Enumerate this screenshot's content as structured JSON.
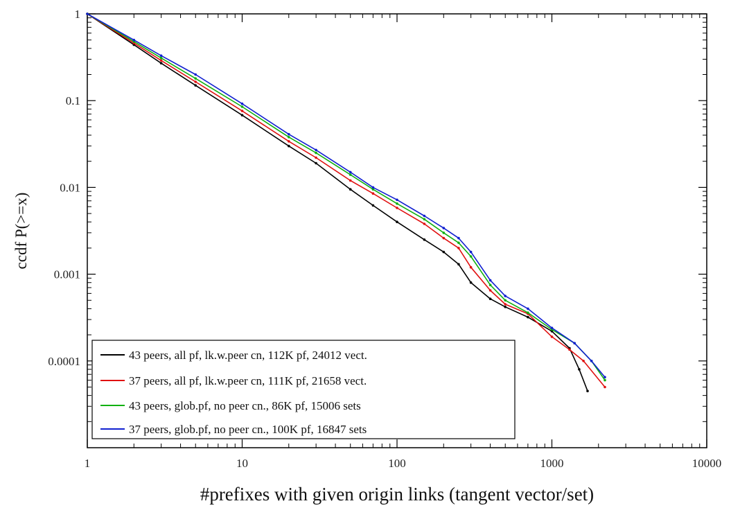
{
  "chart_data": {
    "type": "line",
    "title": "",
    "xlabel": "#prefixes with given origin links (tangent vector/set)",
    "ylabel": "ccdf P(>=x)",
    "xscale": "log",
    "yscale": "log",
    "xlim": [
      1,
      10000
    ],
    "ylim": [
      1e-05,
      1
    ],
    "x_ticks": [
      1,
      10,
      100,
      1000,
      10000
    ],
    "x_tick_labels": [
      "1",
      "10",
      "100",
      "1000",
      "10000"
    ],
    "y_ticks": [
      1,
      0.1,
      0.01,
      0.001,
      0.0001
    ],
    "y_tick_labels": [
      "1",
      "0.1",
      "0.01",
      "0.001",
      "0.0001"
    ],
    "grid": false,
    "legend_position": "bottom-left",
    "series": [
      {
        "name": "43 peers, all pf, lk.w.peer cn, 112K pf, 24012 vect.",
        "color": "#000000",
        "points": [
          [
            1,
            1
          ],
          [
            2,
            0.44
          ],
          [
            3,
            0.27
          ],
          [
            5,
            0.15
          ],
          [
            10,
            0.068
          ],
          [
            20,
            0.03
          ],
          [
            30,
            0.019
          ],
          [
            50,
            0.0095
          ],
          [
            70,
            0.0062
          ],
          [
            100,
            0.004
          ],
          [
            150,
            0.0025
          ],
          [
            200,
            0.0018
          ],
          [
            250,
            0.0013
          ],
          [
            300,
            0.0008
          ],
          [
            400,
            0.00052
          ],
          [
            500,
            0.00042
          ],
          [
            700,
            0.00032
          ],
          [
            1000,
            0.00022
          ],
          [
            1300,
            0.00014
          ],
          [
            1500,
            8e-05
          ],
          [
            1700,
            4.5e-05
          ]
        ]
      },
      {
        "name": "37 peers, all pf, lk.w.peer cn, 111K pf, 21658 vect.",
        "color": "#e01010",
        "points": [
          [
            1,
            1
          ],
          [
            2,
            0.46
          ],
          [
            3,
            0.29
          ],
          [
            5,
            0.165
          ],
          [
            10,
            0.076
          ],
          [
            20,
            0.034
          ],
          [
            30,
            0.022
          ],
          [
            50,
            0.012
          ],
          [
            70,
            0.0085
          ],
          [
            100,
            0.0058
          ],
          [
            150,
            0.0038
          ],
          [
            200,
            0.0026
          ],
          [
            250,
            0.002
          ],
          [
            300,
            0.0012
          ],
          [
            400,
            0.00065
          ],
          [
            500,
            0.00045
          ],
          [
            700,
            0.00035
          ],
          [
            1000,
            0.00019
          ],
          [
            1300,
            0.000135
          ],
          [
            1600,
            0.0001
          ],
          [
            2200,
            5e-05
          ]
        ]
      },
      {
        "name": "43 peers, glob.pf, no peer cn., 86K pf, 15006 sets",
        "color": "#10b010",
        "points": [
          [
            1,
            1
          ],
          [
            2,
            0.48
          ],
          [
            3,
            0.31
          ],
          [
            5,
            0.18
          ],
          [
            10,
            0.085
          ],
          [
            20,
            0.038
          ],
          [
            30,
            0.025
          ],
          [
            50,
            0.014
          ],
          [
            70,
            0.0095
          ],
          [
            100,
            0.0065
          ],
          [
            150,
            0.0043
          ],
          [
            200,
            0.003
          ],
          [
            250,
            0.0023
          ],
          [
            300,
            0.0016
          ],
          [
            400,
            0.00075
          ],
          [
            500,
            0.0005
          ],
          [
            700,
            0.00036
          ],
          [
            1000,
            0.00023
          ],
          [
            1400,
            0.00016
          ],
          [
            1800,
            0.0001
          ],
          [
            2200,
            6e-05
          ]
        ]
      },
      {
        "name": "37 peers, glob.pf, no peer cn., 100K pf, 16847 sets",
        "color": "#1020d0",
        "points": [
          [
            1,
            1
          ],
          [
            2,
            0.5
          ],
          [
            3,
            0.33
          ],
          [
            5,
            0.2
          ],
          [
            10,
            0.092
          ],
          [
            20,
            0.041
          ],
          [
            30,
            0.027
          ],
          [
            50,
            0.015
          ],
          [
            70,
            0.01
          ],
          [
            100,
            0.0072
          ],
          [
            150,
            0.0047
          ],
          [
            200,
            0.0034
          ],
          [
            250,
            0.0026
          ],
          [
            300,
            0.0018
          ],
          [
            400,
            0.00085
          ],
          [
            500,
            0.00056
          ],
          [
            700,
            0.0004
          ],
          [
            1000,
            0.00024
          ],
          [
            1400,
            0.00016
          ],
          [
            1800,
            0.0001
          ],
          [
            2200,
            6.5e-05
          ]
        ]
      }
    ]
  }
}
